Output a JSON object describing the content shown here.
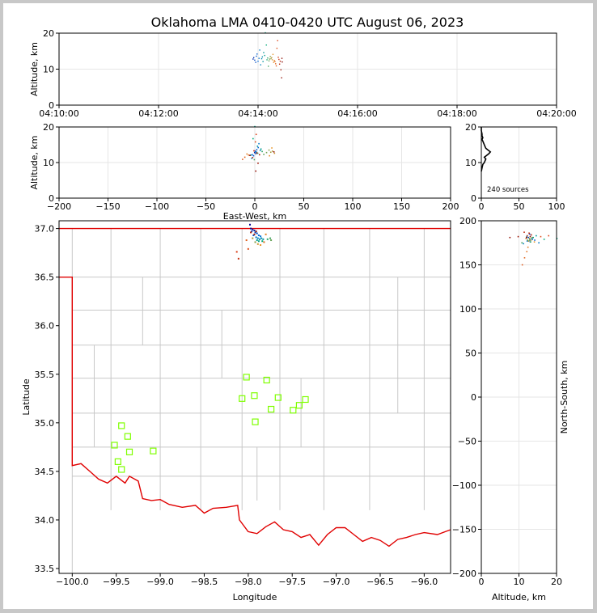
{
  "chart_data": {
    "title": "Oklahoma LMA 0410-0420 UTC August 06, 2023",
    "source_count_label": "240 sources",
    "colors": {
      "background": "#c8c8c8",
      "panel": "#ffffff",
      "border_line": "#e00000",
      "county": "#c8c8c8",
      "station": "#7fff00",
      "grid": "#e6e6e6"
    },
    "panels": [
      {
        "name": "time-altitude",
        "type": "scatter",
        "ylabel": "Altitude, km",
        "xlim": [
          "04:10:00",
          "04:20:00"
        ],
        "ylim": [
          0,
          20
        ],
        "xticks": [
          "04:10:00",
          "04:12:00",
          "04:14:00",
          "04:16:00",
          "04:18:00",
          "04:20:00"
        ],
        "yticks": [
          0,
          10,
          20
        ]
      },
      {
        "name": "eastwest-altitude",
        "type": "scatter",
        "xlabel": "East-West, km",
        "ylabel": "Altitude, km",
        "xlim": [
          -200,
          200
        ],
        "ylim": [
          0,
          20
        ],
        "xticks": [
          -200,
          -150,
          -100,
          -50,
          0,
          50,
          100,
          150,
          200
        ],
        "yticks": [
          0,
          10,
          20
        ]
      },
      {
        "name": "altitude-histogram",
        "type": "line",
        "xlim": [
          0,
          100
        ],
        "ylim": [
          0,
          20
        ],
        "xticks": [
          0,
          50,
          100
        ],
        "yticks": [
          0,
          10,
          20
        ],
        "counts": [
          [
            0,
            7.5
          ],
          [
            1,
            8.5
          ],
          [
            2,
            9.5
          ],
          [
            4,
            10
          ],
          [
            5,
            10.5
          ],
          [
            6,
            11
          ],
          [
            4,
            11.5
          ],
          [
            7,
            12
          ],
          [
            10,
            12.5
          ],
          [
            12,
            13
          ],
          [
            9,
            13.5
          ],
          [
            6,
            14
          ],
          [
            5,
            14.5
          ],
          [
            4,
            15
          ],
          [
            3,
            15.5
          ],
          [
            2,
            16
          ],
          [
            1,
            16.5
          ],
          [
            2,
            17
          ],
          [
            1,
            17.5
          ],
          [
            1,
            18
          ],
          [
            0,
            19
          ],
          [
            0,
            20
          ]
        ]
      },
      {
        "name": "plan-view",
        "type": "scatter",
        "xlabel": "Longitude",
        "ylabel": "Latitude",
        "xlim": [
          -100.15,
          -95.7
        ],
        "ylim": [
          33.45,
          37.08
        ],
        "xticks": [
          -100.0,
          -99.5,
          -99.0,
          -98.5,
          -98.0,
          -97.5,
          -97.0,
          -96.5,
          -96.0
        ],
        "xtick_labels": [
          "−100.0",
          "−99.5",
          "−99.0",
          "−98.5",
          "−98.0",
          "−97.5",
          "−97.0",
          "−96.5",
          "−96.0"
        ],
        "yticks": [
          33.5,
          34.0,
          34.5,
          35.0,
          35.5,
          36.0,
          36.5,
          37.0
        ],
        "ytick_labels": [
          "33.5",
          "34.0",
          "34.5",
          "35.0",
          "35.5",
          "36.0",
          "36.5",
          "37.0"
        ],
        "stations": [
          [
            -98.02,
            35.47
          ],
          [
            -97.79,
            35.44
          ],
          [
            -97.93,
            35.28
          ],
          [
            -98.07,
            35.25
          ],
          [
            -97.66,
            35.26
          ],
          [
            -97.35,
            35.24
          ],
          [
            -97.42,
            35.18
          ],
          [
            -97.74,
            35.14
          ],
          [
            -97.49,
            35.13
          ],
          [
            -97.92,
            35.01
          ],
          [
            -99.44,
            34.97
          ],
          [
            -99.37,
            34.86
          ],
          [
            -99.52,
            34.77
          ],
          [
            -99.35,
            34.7
          ],
          [
            -99.08,
            34.71
          ],
          [
            -99.48,
            34.6
          ],
          [
            -99.44,
            34.52
          ]
        ],
        "sources": [
          [
            -97.98,
            37.04
          ],
          [
            -97.97,
            37.0
          ],
          [
            -97.95,
            36.99
          ],
          [
            -97.93,
            36.98
          ],
          [
            -97.96,
            36.97
          ],
          [
            -97.92,
            36.96
          ],
          [
            -97.9,
            36.95
          ],
          [
            -97.94,
            36.93
          ],
          [
            -97.88,
            36.93
          ],
          [
            -97.86,
            36.92
          ],
          [
            -97.91,
            36.91
          ],
          [
            -97.89,
            36.9
          ],
          [
            -97.85,
            36.9
          ],
          [
            -97.87,
            36.89
          ],
          [
            -97.83,
            36.89
          ],
          [
            -97.9,
            36.88
          ],
          [
            -97.88,
            36.87
          ],
          [
            -97.84,
            36.87
          ],
          [
            -97.78,
            36.89
          ],
          [
            -97.75,
            36.9
          ],
          [
            -97.74,
            36.88
          ],
          [
            -97.92,
            36.86
          ],
          [
            -97.95,
            36.9
          ],
          [
            -97.89,
            36.84
          ],
          [
            -97.86,
            36.83
          ],
          [
            -97.8,
            36.94
          ],
          [
            -97.82,
            36.86
          ],
          [
            -98.02,
            36.88
          ],
          [
            -98.0,
            36.79
          ],
          [
            -98.13,
            36.76
          ],
          [
            -98.11,
            36.69
          ],
          [
            -97.97,
            36.96
          ],
          [
            -97.93,
            36.94
          ],
          [
            -97.91,
            36.97
          ]
        ]
      },
      {
        "name": "altitude-northsouth",
        "type": "scatter",
        "xlabel": "Altitude, km",
        "ylabel": "North-South, km",
        "xlim": [
          0,
          20
        ],
        "ylim": [
          -200,
          200
        ],
        "xticks": [
          0,
          10,
          20
        ],
        "yticks": [
          -200,
          -150,
          -100,
          -50,
          0,
          50,
          100,
          150,
          200
        ]
      }
    ],
    "sources_3d": [
      [
        -0.2,
        185,
        12.8,
        0.1
      ],
      [
        0.4,
        184,
        13.2,
        0.12
      ],
      [
        1.1,
        181,
        12.5,
        0.15
      ],
      [
        -1.3,
        180,
        11.9,
        0.18
      ],
      [
        2.0,
        179,
        13.6,
        0.2
      ],
      [
        3.5,
        178,
        14.2,
        0.22
      ],
      [
        -2.5,
        177,
        12.2,
        0.25
      ],
      [
        0.8,
        176,
        13.0,
        0.28
      ],
      [
        4.2,
        175,
        15.3,
        0.3
      ],
      [
        -3.1,
        174,
        11.2,
        0.33
      ],
      [
        1.9,
        178,
        12.9,
        0.36
      ],
      [
        5.6,
        180,
        13.4,
        0.38
      ],
      [
        -4.0,
        182,
        12.1,
        0.4
      ],
      [
        2.7,
        183,
        14.6,
        0.42
      ],
      [
        6.3,
        181,
        13.8,
        0.45
      ],
      [
        0.0,
        180,
        20.1,
        0.47
      ],
      [
        -1.8,
        179,
        16.7,
        0.5
      ],
      [
        3.0,
        177,
        12.6,
        0.52
      ],
      [
        7.5,
        176,
        13.1,
        0.54
      ],
      [
        -0.5,
        175,
        10.8,
        0.56
      ],
      [
        9.2,
        178,
        12.3,
        0.58
      ],
      [
        12.0,
        180,
        12.8,
        0.6
      ],
      [
        14.5,
        181,
        13.5,
        0.62
      ],
      [
        16.3,
        179,
        12.9,
        0.64
      ],
      [
        18.0,
        178,
        13.2,
        0.66
      ],
      [
        20.1,
        177,
        12.6,
        0.68
      ],
      [
        17.4,
        176,
        14.1,
        0.7
      ],
      [
        15.0,
        180,
        11.9,
        0.72
      ],
      [
        -8.0,
        170,
        12.4,
        0.74
      ],
      [
        -6.3,
        165,
        12.1,
        0.76
      ],
      [
        -10.2,
        158,
        11.5,
        0.78
      ],
      [
        -12.5,
        150,
        10.9,
        0.8
      ],
      [
        0.6,
        182,
        15.8,
        0.82
      ],
      [
        1.4,
        183,
        17.9,
        0.84
      ],
      [
        -0.9,
        184,
        13.3,
        0.86
      ],
      [
        2.2,
        186,
        12.7,
        0.88
      ],
      [
        -2.2,
        187,
        11.4,
        0.9
      ],
      [
        4.8,
        183,
        12.2,
        0.92
      ],
      [
        3.3,
        182,
        9.8,
        0.94
      ],
      [
        1.0,
        181,
        7.6,
        0.96
      ],
      [
        19.5,
        182,
        13.0,
        0.97
      ],
      [
        -5.0,
        181,
        12.0,
        0.98
      ]
    ]
  }
}
